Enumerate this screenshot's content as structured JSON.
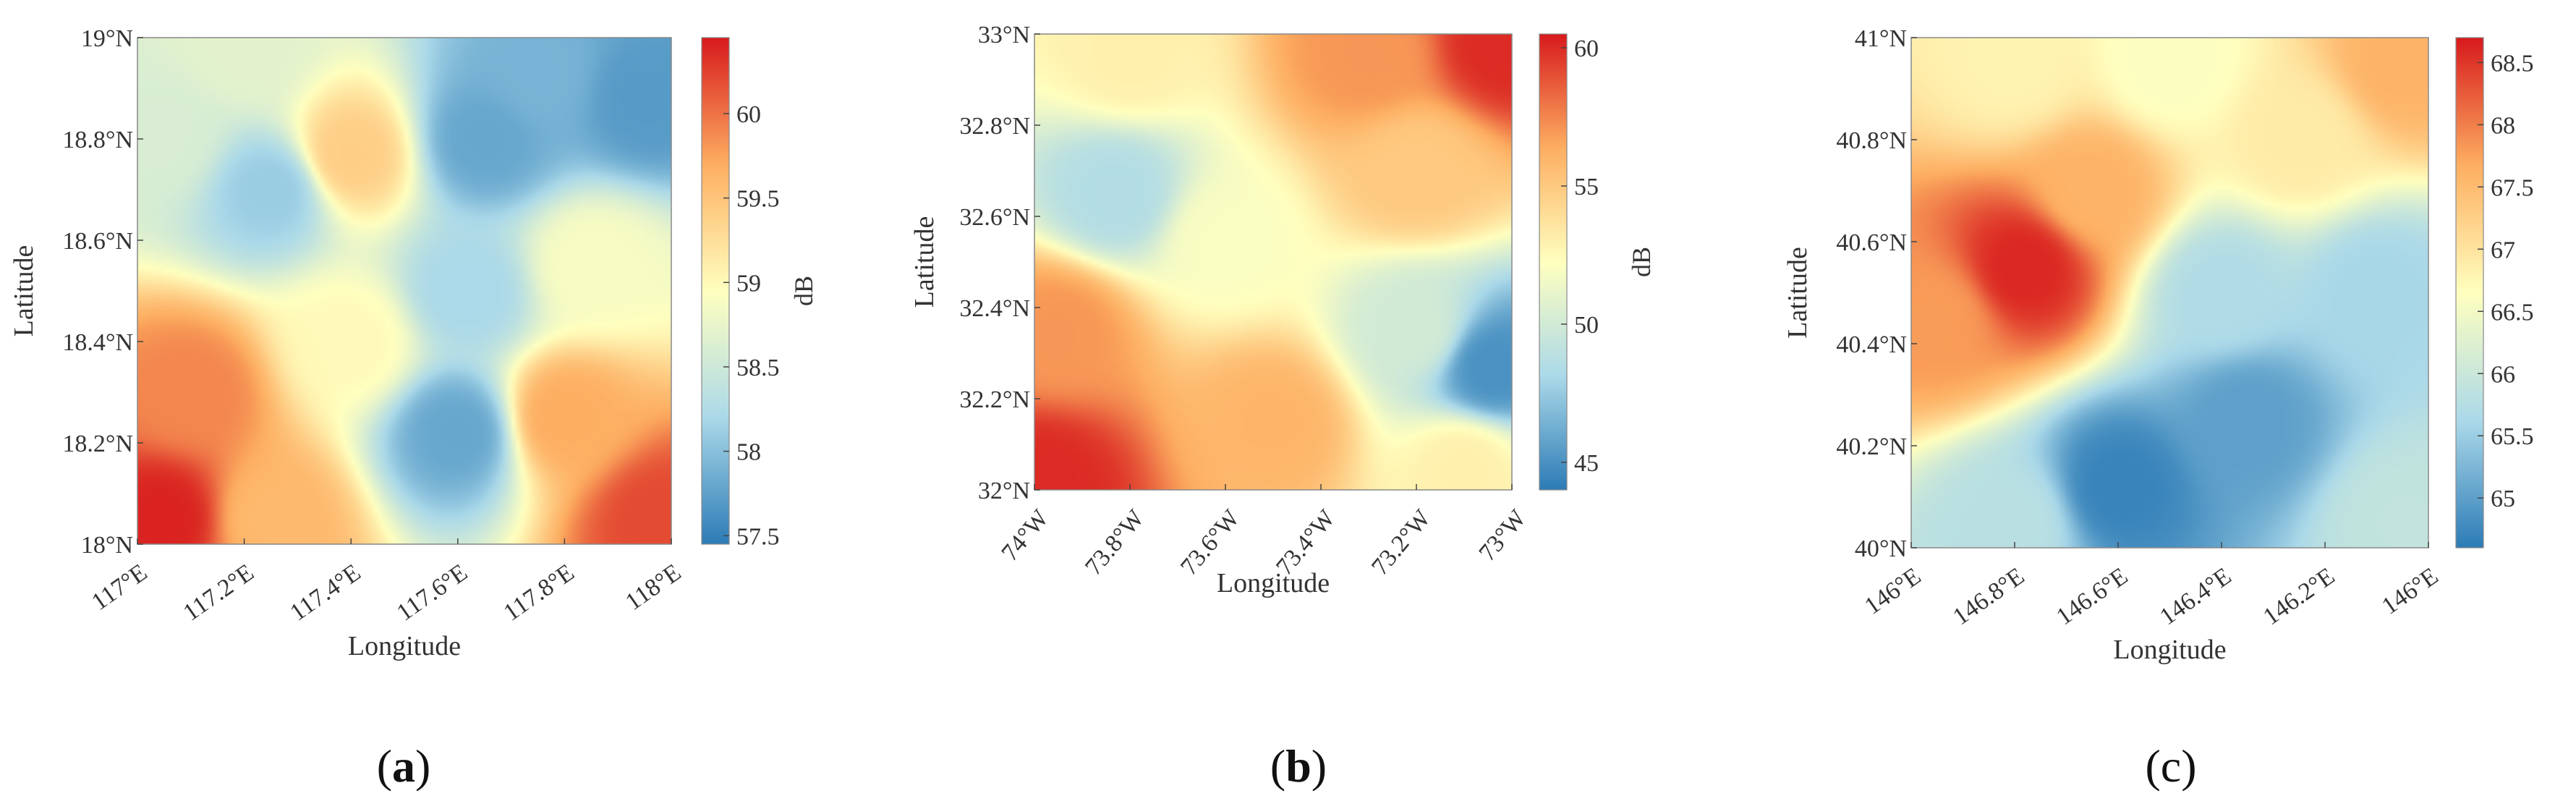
{
  "chart_data": [
    {
      "type": "heatmap",
      "panel_label": "a",
      "panel_label_bold": true,
      "xlabel": "Longitude",
      "ylabel": "Latitude",
      "colorbar_label": "dB",
      "x_ticks": [
        "117°E",
        "117.2°E",
        "117.4°E",
        "117.6°E",
        "117.8°E",
        "118°E"
      ],
      "y_ticks": [
        "18°N",
        "18.2°N",
        "18.4°N",
        "18.6°N",
        "18.8°N",
        "19°N"
      ],
      "colorbar_ticks": [
        "57.5",
        "58",
        "58.5",
        "59",
        "59.5",
        "60"
      ],
      "colorbar_range": [
        57.45,
        60.45
      ],
      "xlim": [
        117,
        118
      ],
      "ylim": [
        18,
        19
      ],
      "field_points": [
        {
          "x": 117.05,
          "y": 18.05,
          "v": 60.4
        },
        {
          "x": 117.1,
          "y": 18.3,
          "v": 59.9
        },
        {
          "x": 117.25,
          "y": 18.05,
          "v": 59.6
        },
        {
          "x": 117.98,
          "y": 18.05,
          "v": 60.2
        },
        {
          "x": 117.8,
          "y": 18.25,
          "v": 59.7
        },
        {
          "x": 117.4,
          "y": 18.77,
          "v": 59.4
        },
        {
          "x": 117.6,
          "y": 18.22,
          "v": 57.8
        },
        {
          "x": 117.62,
          "y": 18.5,
          "v": 58.2
        },
        {
          "x": 117.65,
          "y": 18.8,
          "v": 57.8
        },
        {
          "x": 117.75,
          "y": 18.92,
          "v": 57.9
        },
        {
          "x": 117.95,
          "y": 18.88,
          "v": 57.7
        },
        {
          "x": 117.25,
          "y": 18.7,
          "v": 58.1
        },
        {
          "x": 117.05,
          "y": 18.8,
          "v": 58.6
        },
        {
          "x": 117.4,
          "y": 18.4,
          "v": 59.0
        },
        {
          "x": 117.85,
          "y": 18.55,
          "v": 58.9
        },
        {
          "x": 117.2,
          "y": 18.98,
          "v": 58.7
        }
      ]
    },
    {
      "type": "heatmap",
      "panel_label": "b",
      "panel_label_bold": true,
      "xlabel": "Longitude",
      "ylabel": "Latitude",
      "colorbar_label": "dB",
      "x_ticks": [
        "74°W",
        "73.8°W",
        "73.6°W",
        "73.4°W",
        "73.2°W",
        "73°W"
      ],
      "y_ticks": [
        "32°N",
        "32.2°N",
        "32.4°N",
        "32.6°N",
        "32.8°N",
        "33°N"
      ],
      "colorbar_ticks": [
        "45",
        "50",
        "55",
        "60"
      ],
      "colorbar_range": [
        44,
        60.5
      ],
      "xlim": [
        -74,
        -73
      ],
      "ylim": [
        32,
        33
      ],
      "field_points": [
        {
          "x": -73.98,
          "y": 32.02,
          "v": 60
        },
        {
          "x": -73.02,
          "y": 32.98,
          "v": 60
        },
        {
          "x": -73.3,
          "y": 32.95,
          "v": 57
        },
        {
          "x": -73.8,
          "y": 32.95,
          "v": 53
        },
        {
          "x": -73.83,
          "y": 32.65,
          "v": 48.5
        },
        {
          "x": -73.6,
          "y": 32.55,
          "v": 52
        },
        {
          "x": -73.04,
          "y": 32.27,
          "v": 45
        },
        {
          "x": -73.2,
          "y": 32.35,
          "v": 50
        },
        {
          "x": -73.5,
          "y": 32.15,
          "v": 56
        },
        {
          "x": -73.2,
          "y": 32.7,
          "v": 55
        },
        {
          "x": -73.95,
          "y": 32.35,
          "v": 57
        },
        {
          "x": -73.1,
          "y": 32.05,
          "v": 53
        }
      ]
    },
    {
      "type": "heatmap",
      "panel_label": "c",
      "panel_label_bold": false,
      "xlabel": "Longitude",
      "ylabel": "Latitude",
      "colorbar_label": "dB",
      "x_ticks": [
        "146°E",
        "146.8°E",
        "146.6°E",
        "146.4°E",
        "146.2°E",
        "146°E"
      ],
      "y_ticks": [
        "40°N",
        "40.2°N",
        "40.4°N",
        "40.6°N",
        "40.8°N",
        "41°N"
      ],
      "colorbar_ticks": [
        "65",
        "65.5",
        "66",
        "66.5",
        "67",
        "67.5",
        "68",
        "68.5"
      ],
      "colorbar_range": [
        64.6,
        68.7
      ],
      "xlim": [
        0,
        1
      ],
      "ylim": [
        40,
        41
      ],
      "field_points": [
        {
          "x": 0.22,
          "y": 40.55,
          "v": 68.6
        },
        {
          "x": 0.05,
          "y": 40.45,
          "v": 67.8
        },
        {
          "x": 0.35,
          "y": 40.7,
          "v": 67.6
        },
        {
          "x": 0.4,
          "y": 40.12,
          "v": 64.7
        },
        {
          "x": 0.65,
          "y": 40.25,
          "v": 65.0
        },
        {
          "x": 0.9,
          "y": 40.5,
          "v": 65.6
        },
        {
          "x": 0.2,
          "y": 40.05,
          "v": 65.8
        },
        {
          "x": 0.5,
          "y": 40.95,
          "v": 66.6
        },
        {
          "x": 0.2,
          "y": 40.95,
          "v": 66.8
        },
        {
          "x": 0.95,
          "y": 40.95,
          "v": 67.6
        },
        {
          "x": 0.75,
          "y": 40.8,
          "v": 66.9
        },
        {
          "x": 0.95,
          "y": 40.05,
          "v": 65.9
        },
        {
          "x": 0.6,
          "y": 40.5,
          "v": 65.7
        }
      ]
    }
  ],
  "colormap": [
    "#2c7bb6",
    "#abd9e9",
    "#ffffbf",
    "#fdae61",
    "#d7191c"
  ]
}
